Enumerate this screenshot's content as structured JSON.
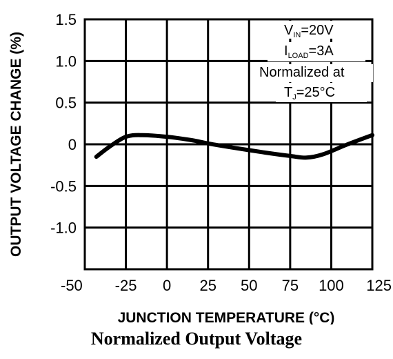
{
  "chart_data": {
    "type": "line",
    "xlabel": "JUNCTION TEMPERATURE (°C)",
    "ylabel": "OUTPUT VOLTAGE CHANGE (%)",
    "xlim": [
      -50,
      125
    ],
    "ylim": [
      -1.5,
      1.5
    ],
    "x_ticks": [
      -50,
      -25,
      0,
      25,
      50,
      75,
      100,
      125
    ],
    "x_tick_labels": [
      "-50",
      "-25",
      "0",
      "25",
      "50",
      "75",
      "100",
      "125"
    ],
    "y_ticks": [
      1.5,
      1.0,
      0.5,
      0,
      -0.5,
      -1.0
    ],
    "y_tick_labels": [
      "1.5",
      "1.0",
      "0.5",
      "0",
      "-0.5",
      "-1.0"
    ],
    "grid": true,
    "series": [
      {
        "color": "#000000",
        "x": [
          -43,
          -35,
          -25,
          -15,
          0,
          15,
          25,
          40,
          60,
          75,
          85,
          95,
          110,
          125
        ],
        "y": [
          -0.15,
          -0.03,
          0.09,
          0.11,
          0.09,
          0.05,
          0.01,
          -0.04,
          -0.1,
          -0.14,
          -0.16,
          -0.12,
          0.0,
          0.11
        ]
      }
    ],
    "annotation": {
      "vin_main": "V",
      "vin_sub": "IN",
      "vin_rest": "=20V",
      "iload_main": "I",
      "iload_sub": "LOAD",
      "iload_rest": "=3A",
      "normalized": "Normalized at",
      "tj_main": "T",
      "tj_sub": "J",
      "tj_rest": "=25°C"
    }
  },
  "caption": "Normalized Output Voltage"
}
